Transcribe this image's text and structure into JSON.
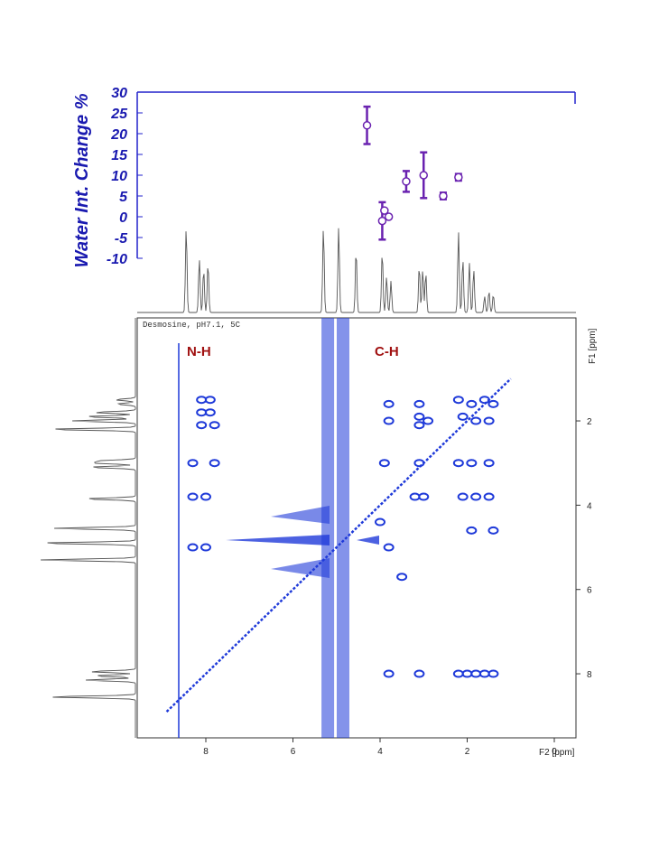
{
  "colors": {
    "accent_blue": "#2222cc",
    "label_blue": "#1a1ab0",
    "error_purple": "#6a22b0",
    "contour_blue": "#1f3ad9",
    "region_label_red": "#a01010",
    "spectrum_gray": "#555555"
  },
  "chart_data": [
    {
      "type": "scatter",
      "ylabel": "Water Int. Change %",
      "y_ticks": [
        "30",
        "25",
        "20",
        "15",
        "10",
        "5",
        "0",
        "-5",
        "-10"
      ],
      "ylim": [
        -10,
        30
      ],
      "xlim": [
        9.5,
        -0.5
      ],
      "error_bars": true,
      "points": [
        {
          "x": 4.3,
          "y": 22,
          "err": 4.5
        },
        {
          "x": 3.95,
          "y": -1,
          "err": 4.5
        },
        {
          "x": 3.9,
          "y": 1.5,
          "err": 0
        },
        {
          "x": 3.8,
          "y": 0,
          "err": 0
        },
        {
          "x": 3.4,
          "y": 8.5,
          "err": 2.5
        },
        {
          "x": 3.0,
          "y": 10,
          "err": 5.5
        },
        {
          "x": 2.55,
          "y": 5,
          "err": 0.8
        },
        {
          "x": 2.2,
          "y": 9.5,
          "err": 0.8
        }
      ]
    },
    {
      "type": "heatmap",
      "title": "Desmosine, pH7.1, 5C",
      "x_ticks": [
        "8",
        "6",
        "4",
        "2",
        "0"
      ],
      "xlabel": "F2 [ppm]",
      "y_ticks": [
        "2",
        "4",
        "6",
        "8"
      ],
      "ylabel": "F1 [ppm]",
      "xlim": [
        9.5,
        -0.5
      ],
      "ylim": [
        0.5,
        9.5
      ],
      "annotations": [
        "N-H",
        "C-H"
      ],
      "cross_peaks": [
        {
          "f2": 8.1,
          "f1": 1.5
        },
        {
          "f2": 7.9,
          "f1": 1.5
        },
        {
          "f2": 8.1,
          "f1": 1.8
        },
        {
          "f2": 7.9,
          "f1": 1.8
        },
        {
          "f2": 8.1,
          "f1": 2.1
        },
        {
          "f2": 7.8,
          "f1": 2.1
        },
        {
          "f2": 8.3,
          "f1": 3.0
        },
        {
          "f2": 7.8,
          "f1": 3.0
        },
        {
          "f2": 8.3,
          "f1": 3.8
        },
        {
          "f2": 8.0,
          "f1": 3.8
        },
        {
          "f2": 8.3,
          "f1": 5.0
        },
        {
          "f2": 8.0,
          "f1": 5.0
        },
        {
          "f2": 3.8,
          "f1": 1.6
        },
        {
          "f2": 3.8,
          "f1": 2.0
        },
        {
          "f2": 3.1,
          "f1": 1.6
        },
        {
          "f2": 3.1,
          "f1": 1.9
        },
        {
          "f2": 3.1,
          "f1": 2.1
        },
        {
          "f2": 2.9,
          "f1": 2.0
        },
        {
          "f2": 2.2,
          "f1": 1.5
        },
        {
          "f2": 1.9,
          "f1": 1.6
        },
        {
          "f2": 1.6,
          "f1": 1.5
        },
        {
          "f2": 1.4,
          "f1": 1.6
        },
        {
          "f2": 2.1,
          "f1": 1.9
        },
        {
          "f2": 1.8,
          "f1": 2.0
        },
        {
          "f2": 1.5,
          "f1": 2.0
        },
        {
          "f2": 3.9,
          "f1": 3.0
        },
        {
          "f2": 3.1,
          "f1": 3.0
        },
        {
          "f2": 2.2,
          "f1": 3.0
        },
        {
          "f2": 1.9,
          "f1": 3.0
        },
        {
          "f2": 1.5,
          "f1": 3.0
        },
        {
          "f2": 3.2,
          "f1": 3.8
        },
        {
          "f2": 3.0,
          "f1": 3.8
        },
        {
          "f2": 2.1,
          "f1": 3.8
        },
        {
          "f2": 1.8,
          "f1": 3.8
        },
        {
          "f2": 1.5,
          "f1": 3.8
        },
        {
          "f2": 1.9,
          "f1": 4.6
        },
        {
          "f2": 1.4,
          "f1": 4.6
        },
        {
          "f2": 3.8,
          "f1": 8.0
        },
        {
          "f2": 3.1,
          "f1": 8.0
        },
        {
          "f2": 2.2,
          "f1": 8.0
        },
        {
          "f2": 2.0,
          "f1": 8.0
        },
        {
          "f2": 1.8,
          "f1": 8.0
        },
        {
          "f2": 1.6,
          "f1": 8.0
        },
        {
          "f2": 1.4,
          "f1": 8.0
        },
        {
          "f2": 3.8,
          "f1": 5.0
        },
        {
          "f2": 3.5,
          "f1": 5.7
        },
        {
          "f2": 4.0,
          "f1": 4.4
        }
      ]
    }
  ]
}
